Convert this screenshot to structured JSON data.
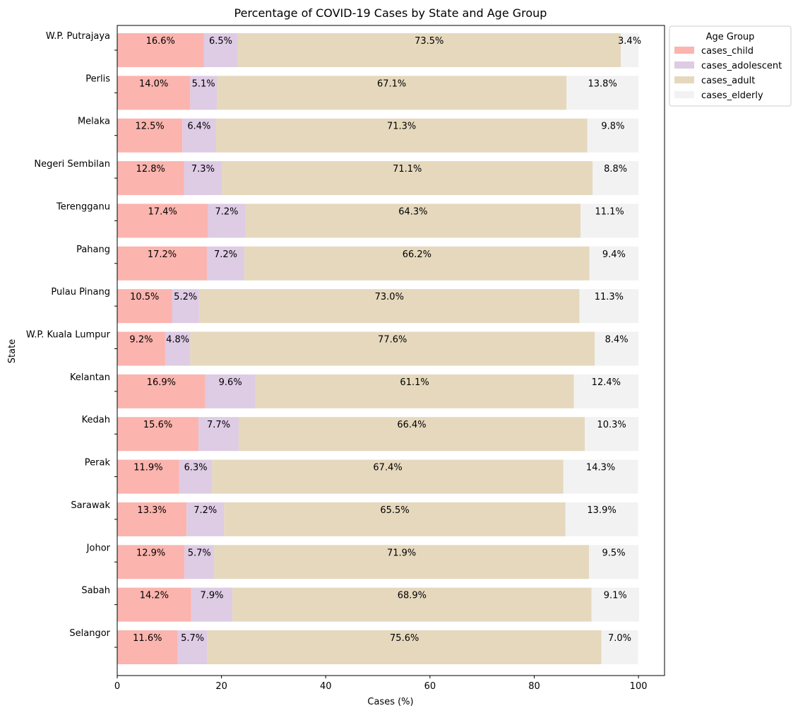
{
  "chart_data": {
    "type": "bar",
    "orientation": "horizontal",
    "stacked": true,
    "title": "Percentage of COVID-19 Cases by State and Age Group",
    "xlabel": "Cases (%)",
    "ylabel": "State",
    "xlim": [
      0,
      105
    ],
    "xticks": [
      0,
      20,
      40,
      60,
      80,
      100
    ],
    "grid": false,
    "legend": {
      "title": "Age Group",
      "position": "outside top-right"
    },
    "categories": [
      "W.P. Putrajaya",
      "Perlis",
      "Melaka",
      "Negeri Sembilan",
      "Terengganu",
      "Pahang",
      "Pulau Pinang",
      "W.P. Kuala Lumpur",
      "Kelantan",
      "Kedah",
      "Perak",
      "Sarawak",
      "Johor",
      "Sabah",
      "Selangor"
    ],
    "series": [
      {
        "name": "cases_child",
        "color": "#fbb4ae",
        "values": [
          16.6,
          14.0,
          12.5,
          12.8,
          17.4,
          17.2,
          10.5,
          9.2,
          16.9,
          15.6,
          11.9,
          13.3,
          12.9,
          14.2,
          11.6
        ]
      },
      {
        "name": "cases_adolescent",
        "color": "#decbe4",
        "values": [
          6.5,
          5.1,
          6.4,
          7.3,
          7.2,
          7.2,
          5.2,
          4.8,
          9.6,
          7.7,
          6.3,
          7.2,
          5.7,
          7.9,
          5.7
        ]
      },
      {
        "name": "cases_adult",
        "color": "#e5d8bd",
        "values": [
          73.5,
          67.1,
          71.3,
          71.1,
          64.3,
          66.2,
          73.0,
          77.6,
          61.1,
          66.4,
          67.4,
          65.5,
          71.9,
          68.9,
          75.6
        ]
      },
      {
        "name": "cases_elderly",
        "color": "#f2f2f2",
        "values": [
          3.4,
          13.8,
          9.8,
          8.8,
          11.1,
          9.4,
          11.3,
          8.4,
          12.4,
          10.3,
          14.3,
          13.9,
          9.5,
          9.1,
          7.0
        ]
      }
    ]
  }
}
